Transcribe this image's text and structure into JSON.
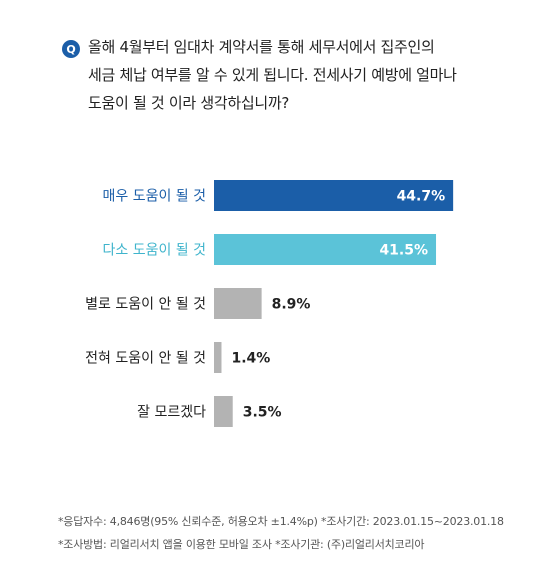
{
  "question": {
    "badge": "Q",
    "text": "올해 4월부터 임대차 계약서를 통해 세무서에서 집주인의\n세금 체납 여부를 알 수 있게 됩니다. 전세사기 예방에 얼마나\n도움이 될 것 이라 생각하십니까?"
  },
  "chart_data": {
    "type": "bar",
    "orientation": "horizontal",
    "categories": [
      "매우 도움이 될 것",
      "다소 도움이 될 것",
      "별로 도움이 안 될 것",
      "전혀 도움이 안 될 것",
      "잘 모르겠다"
    ],
    "values": [
      44.7,
      41.5,
      8.9,
      1.4,
      3.5
    ],
    "value_labels": [
      "44.7%",
      "41.5%",
      "8.9%",
      "1.4%",
      "3.5%"
    ],
    "unit": "%",
    "colors": [
      "#1b5ea8",
      "#5bc3d8",
      "#b3b3b3",
      "#b3b3b3",
      "#b3b3b3"
    ],
    "label_colors": [
      "#1b5ea8",
      "#3fb4cc",
      "#222222",
      "#222222",
      "#222222"
    ],
    "value_inside": [
      true,
      true,
      false,
      false,
      false
    ],
    "title": "",
    "xlabel": "",
    "ylabel": ""
  },
  "footnotes": {
    "line1": "*응답자수: 4,846명(95% 신뢰수준, 허용오차 ±1.4%p)  *조사기간: 2023.01.15~2023.01.18",
    "line2": "*조사방법: 리얼리서치 앱을 이용한 모바일 조사  *조사기관: (주)리얼리서치코리아"
  }
}
